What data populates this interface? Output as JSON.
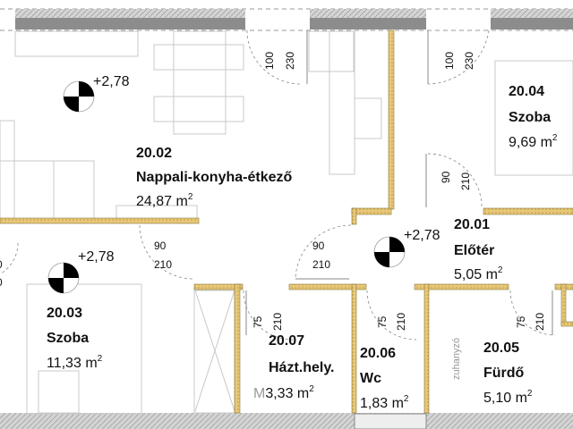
{
  "colors": {
    "interior_wall": "#e8c878",
    "exterior_wall": "#8c8c8c",
    "hatch": "#c8c8c8"
  },
  "level_marker": "+2,78",
  "rooms": [
    {
      "number": "20.02",
      "name": "Nappali-konyha-étkező",
      "area": "24,87",
      "unit": "m",
      "sup": "2"
    },
    {
      "number": "20.04",
      "name": "Szoba",
      "area": "9,69",
      "unit": "m",
      "sup": "2"
    },
    {
      "number": "20.03",
      "name": "Szoba",
      "area": "11,33",
      "unit": "m",
      "sup": "2"
    },
    {
      "number": "20.01",
      "name": "Előtér",
      "area": "5,05",
      "unit": "m",
      "sup": "2"
    },
    {
      "number": "20.07",
      "name": "Házt.hely.",
      "area": "3,33",
      "unit": "m",
      "sup": "2",
      "prefix": "M"
    },
    {
      "number": "20.06",
      "name": "Wc",
      "area": "1,83",
      "unit": "m",
      "sup": "2"
    },
    {
      "number": "20.05",
      "name": "Fürdő",
      "area": "5,10",
      "unit": "m",
      "sup": "2"
    }
  ],
  "dims": {
    "w100": "100",
    "h230": "230",
    "w90": "90",
    "h210": "210",
    "w75": "75",
    "partial": "0"
  },
  "shower_label": "zuhanyzó"
}
